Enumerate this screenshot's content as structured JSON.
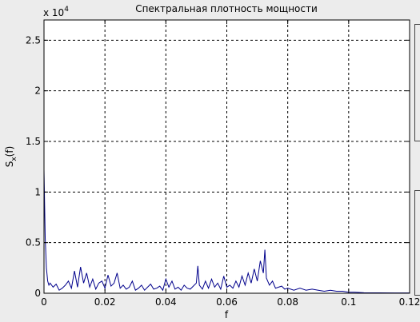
{
  "window": {
    "background": "#ececec"
  },
  "chart_data": {
    "type": "line",
    "title": "Спектральная плотность мощности",
    "xlabel": "f",
    "ylabel": "S",
    "ylabel_sub": "x",
    "ylabel_arg": "(f)",
    "y_exponent_base": "x 10",
    "y_exponent_power": "4",
    "xlim": [
      0,
      0.12
    ],
    "ylim": [
      0,
      2.7
    ],
    "xticks": [
      0,
      0.02,
      0.04,
      0.06,
      0.08,
      0.1,
      0.12
    ],
    "xtick_labels": [
      "0",
      "0.02",
      "0.04",
      "0.06",
      "0.08",
      "0.1",
      "0.12"
    ],
    "yticks": [
      0,
      0.5,
      1,
      1.5,
      2,
      2.5
    ],
    "ytick_labels": [
      "0",
      "0.5",
      "1",
      "1.5",
      "2",
      "2.5"
    ],
    "grid": true,
    "grid_style": "dashed",
    "line_color": "#00008b",
    "series": [
      {
        "x": [
          0,
          0.0004,
          0.0008,
          0.0012,
          0.0016,
          0.002,
          0.003,
          0.004,
          0.005,
          0.006,
          0.007,
          0.008,
          0.009,
          0.01,
          0.011,
          0.012,
          0.013,
          0.014,
          0.015,
          0.016,
          0.017,
          0.018,
          0.019,
          0.02,
          0.021,
          0.022,
          0.023,
          0.024,
          0.025,
          0.026,
          0.027,
          0.028,
          0.029,
          0.03,
          0.031,
          0.032,
          0.033,
          0.034,
          0.035,
          0.036,
          0.037,
          0.038,
          0.039,
          0.04,
          0.041,
          0.042,
          0.043,
          0.044,
          0.045,
          0.046,
          0.047,
          0.048,
          0.049,
          0.05,
          0.0505,
          0.051,
          0.052,
          0.053,
          0.054,
          0.055,
          0.056,
          0.057,
          0.058,
          0.059,
          0.06,
          0.061,
          0.062,
          0.063,
          0.064,
          0.065,
          0.066,
          0.067,
          0.068,
          0.069,
          0.07,
          0.071,
          0.072,
          0.0725,
          0.073,
          0.074,
          0.075,
          0.076,
          0.077,
          0.078,
          0.079,
          0.08,
          0.082,
          0.084,
          0.086,
          0.088,
          0.09,
          0.092,
          0.094,
          0.096,
          0.098,
          0.1,
          0.102,
          0.105,
          0.11,
          0.115,
          0.12
        ],
        "y": [
          1.22,
          0.55,
          0.25,
          0.12,
          0.08,
          0.1,
          0.06,
          0.09,
          0.03,
          0.05,
          0.08,
          0.12,
          0.05,
          0.22,
          0.06,
          0.26,
          0.1,
          0.2,
          0.06,
          0.14,
          0.04,
          0.1,
          0.12,
          0.05,
          0.18,
          0.07,
          0.1,
          0.2,
          0.05,
          0.08,
          0.04,
          0.06,
          0.12,
          0.03,
          0.05,
          0.08,
          0.03,
          0.06,
          0.09,
          0.04,
          0.05,
          0.07,
          0.03,
          0.14,
          0.06,
          0.12,
          0.04,
          0.06,
          0.03,
          0.08,
          0.05,
          0.04,
          0.07,
          0.1,
          0.27,
          0.08,
          0.04,
          0.12,
          0.05,
          0.14,
          0.06,
          0.1,
          0.04,
          0.17,
          0.06,
          0.08,
          0.05,
          0.12,
          0.06,
          0.17,
          0.08,
          0.2,
          0.1,
          0.24,
          0.12,
          0.32,
          0.2,
          0.43,
          0.15,
          0.08,
          0.12,
          0.05,
          0.06,
          0.07,
          0.04,
          0.05,
          0.03,
          0.05,
          0.03,
          0.04,
          0.03,
          0.02,
          0.03,
          0.02,
          0.02,
          0.01,
          0.01,
          0.005,
          0.004,
          0.003,
          0.003
        ]
      }
    ]
  }
}
